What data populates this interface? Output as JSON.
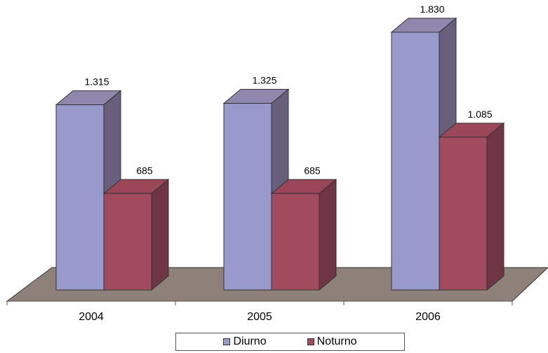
{
  "colors": {
    "series": [
      "#9999cc",
      "#a34b5e"
    ],
    "series_side": [
      "#68607a",
      "#6e3645"
    ],
    "series_top": [
      "#8f87ae",
      "#9b4759"
    ],
    "floor": "#8e8179",
    "edge": "#333333"
  },
  "chart_data": {
    "type": "bar",
    "categories": [
      "2004",
      "2005",
      "2006"
    ],
    "series": [
      {
        "name": "Diurno",
        "values": [
          1315,
          1325,
          1830
        ]
      },
      {
        "name": "Noturno",
        "values": [
          685,
          685,
          1085
        ]
      }
    ],
    "data_labels": [
      [
        "1.315",
        "1.325",
        "1.830"
      ],
      [
        "685",
        "685",
        "1.085"
      ]
    ],
    "ylim": [
      0,
      1830
    ],
    "style": "3d-clustered-column",
    "grid": false,
    "legend_position": "bottom"
  }
}
